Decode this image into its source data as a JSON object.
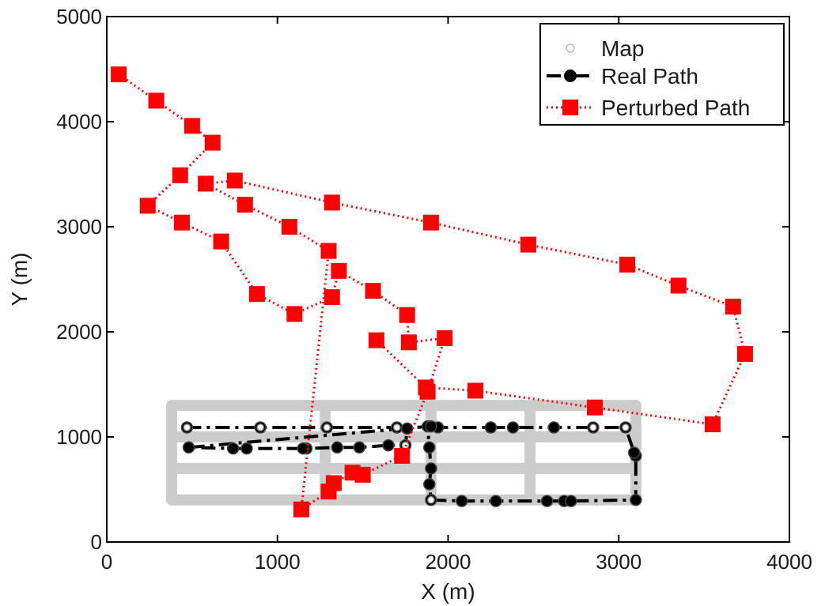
{
  "chart_data": {
    "type": "line",
    "xlabel": "X (m)",
    "ylabel": "Y (m)",
    "xlim": [
      0,
      4000
    ],
    "ylim": [
      0,
      5000
    ],
    "xticks": [
      "0",
      "1000",
      "2000",
      "3000",
      "4000"
    ],
    "yticks": [
      "0",
      "1000",
      "2000",
      "3000",
      "4000",
      "5000"
    ],
    "grid": false,
    "legend_position": "top-right",
    "legend": [
      {
        "label": "Map",
        "style": "open-circle",
        "color": "#bbbbbb"
      },
      {
        "label": "Real Path",
        "style": "dash-dot-filled-circle",
        "color": "#000000"
      },
      {
        "label": "Perturbed Path",
        "style": "dotted-filled-square",
        "color": "#ff0000"
      }
    ],
    "map": {
      "color": "#cccccc",
      "rows_y": [
        400,
        700,
        1000,
        1300
      ],
      "x_range": [
        380,
        3100
      ],
      "columns_x": [
        380,
        1280,
        1900,
        2480,
        3100
      ],
      "y_range": [
        400,
        1300
      ]
    },
    "series": [
      {
        "name": "Real Path",
        "color": "#000000",
        "points": [
          [
            470,
            1090
          ],
          [
            900,
            1090
          ],
          [
            1290,
            1090
          ],
          [
            1700,
            1090
          ],
          [
            1760,
            1080
          ],
          [
            1750,
            920
          ],
          [
            1650,
            920
          ],
          [
            1480,
            900
          ],
          [
            1350,
            900
          ],
          [
            1170,
            890
          ],
          [
            1150,
            890
          ],
          [
            820,
            890
          ],
          [
            740,
            890
          ],
          [
            480,
            900
          ],
          [
            1880,
            1100
          ],
          [
            1890,
            900
          ],
          [
            1900,
            700
          ],
          [
            1890,
            550
          ],
          [
            1900,
            400
          ],
          [
            2080,
            390
          ],
          [
            2280,
            390
          ],
          [
            2580,
            390
          ],
          [
            2680,
            390
          ],
          [
            2720,
            390
          ],
          [
            3100,
            400
          ],
          [
            3100,
            820
          ],
          [
            3090,
            850
          ],
          [
            3040,
            1090
          ],
          [
            2850,
            1090
          ],
          [
            2620,
            1090
          ],
          [
            2380,
            1090
          ],
          [
            2250,
            1090
          ],
          [
            1940,
            1090
          ],
          [
            1900,
            1100
          ]
        ]
      },
      {
        "name": "Perturbed Path",
        "color": "#ff0000",
        "points": [
          [
            70,
            4450
          ],
          [
            290,
            4200
          ],
          [
            500,
            3960
          ],
          [
            620,
            3800
          ],
          [
            430,
            3490
          ],
          [
            240,
            3200
          ],
          [
            440,
            3040
          ],
          [
            670,
            2860
          ],
          [
            880,
            2360
          ],
          [
            1100,
            2170
          ],
          [
            1320,
            2330
          ],
          [
            1360,
            2580
          ],
          [
            1560,
            2390
          ],
          [
            1760,
            2160
          ],
          [
            1770,
            1900
          ],
          [
            1980,
            1940
          ],
          [
            1880,
            1430
          ],
          [
            1730,
            820
          ],
          [
            1500,
            640
          ],
          [
            1440,
            660
          ],
          [
            1330,
            560
          ],
          [
            1300,
            480
          ],
          [
            1140,
            310
          ],
          [
            1300,
            2770
          ],
          [
            1070,
            3000
          ],
          [
            810,
            3210
          ],
          [
            580,
            3410
          ],
          [
            750,
            3440
          ],
          [
            1320,
            3230
          ],
          [
            1900,
            3040
          ],
          [
            2470,
            2830
          ],
          [
            3050,
            2640
          ],
          [
            3350,
            2440
          ],
          [
            3670,
            2240
          ],
          [
            3740,
            1790
          ],
          [
            3550,
            1120
          ],
          [
            2860,
            1280
          ],
          [
            2160,
            1440
          ],
          [
            1870,
            1470
          ],
          [
            1580,
            1920
          ]
        ]
      }
    ]
  },
  "legend_items": {
    "map": "Map",
    "real": "Real Path",
    "perturbed": "Perturbed Path"
  }
}
